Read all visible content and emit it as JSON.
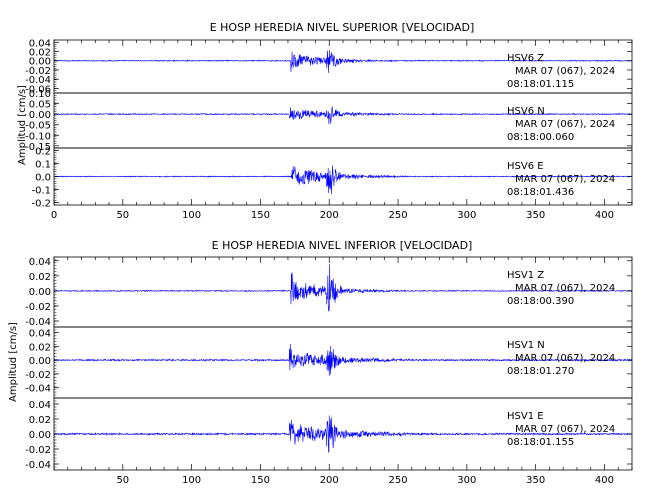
{
  "chart_data": [
    {
      "type": "line",
      "title": "E HOSP HEREDIA NIVEL SUPERIOR [VELOCIDAD]",
      "ylabel": "Amplitud [cm/s]",
      "xlim": [
        0,
        420
      ],
      "xticks": [
        "0",
        "50",
        "100",
        "150",
        "200",
        "250",
        "300",
        "350",
        "400"
      ],
      "series_color": "#0000ff",
      "traces": [
        {
          "station": "HSV6",
          "component": "Z",
          "date": "MAR 07 (067), 2024",
          "time": "08:18:01.115",
          "ylim": [
            -0.07,
            0.045
          ],
          "yticks": [
            "0.04",
            "0.02",
            "0.00",
            "-0.02",
            "-0.04",
            "-0.06"
          ],
          "onset": 172,
          "peak": 0.042,
          "burst": 200,
          "decay": 28,
          "noise": 0.0012
        },
        {
          "station": "HSV6",
          "component": "N",
          "date": "MAR 07 (067), 2024",
          "time": "08:18:00.060",
          "ylim": [
            -0.16,
            0.1
          ],
          "yticks": [
            "0.10",
            "0.05",
            "0.00",
            "-0.05",
            "-0.10",
            "-0.15"
          ],
          "onset": 171,
          "peak": 0.07,
          "burst": 200,
          "decay": 35,
          "noise": 0.003
        },
        {
          "station": "HSV6",
          "component": "E",
          "date": "MAR 07 (067), 2024",
          "time": "08:18:01.436",
          "ylim": [
            -0.22,
            0.22
          ],
          "yticks": [
            "0.2",
            "0.1",
            "0.0",
            "-0.1",
            "-0.2"
          ],
          "onset": 172,
          "peak": 0.2,
          "burst": 200,
          "decay": 30,
          "noise": 0.004
        }
      ]
    },
    {
      "type": "line",
      "title": "E HOSP HEREDIA NIVEL INFERIOR [VELOCIDAD]",
      "ylabel": "Amplitud [cm/s]",
      "xlim": [
        0,
        420
      ],
      "xticks": [
        "50",
        "100",
        "150",
        "200",
        "250",
        "300",
        "350",
        "400"
      ],
      "series_color": "#0000ff",
      "traces": [
        {
          "station": "HSV1",
          "component": "Z",
          "date": "MAR 07 (067), 2024",
          "time": "08:18:00.390",
          "ylim": [
            -0.048,
            0.045
          ],
          "yticks": [
            "0.04",
            "0.02",
            "0.00",
            "-0.02",
            "-0.04"
          ],
          "onset": 172,
          "peak": 0.04,
          "burst": 200,
          "decay": 28,
          "noise": 0.0008
        },
        {
          "station": "HSV1",
          "component": "N",
          "date": "MAR 07 (067), 2024",
          "time": "08:18:01.270",
          "ylim": [
            -0.055,
            0.048
          ],
          "yticks": [
            "0.04",
            "0.02",
            "0.00",
            "-0.02",
            "-0.04"
          ],
          "onset": 171,
          "peak": 0.033,
          "burst": 200,
          "decay": 40,
          "noise": 0.0012
        },
        {
          "station": "HSV1",
          "component": "E",
          "date": "MAR 07 (067), 2024",
          "time": "08:18:01.155",
          "ylim": [
            -0.048,
            0.048
          ],
          "yticks": [
            "0.04",
            "0.02",
            "0.00",
            "-0.02",
            "-0.04"
          ],
          "onset": 171,
          "peak": 0.036,
          "burst": 200,
          "decay": 42,
          "noise": 0.0012
        }
      ]
    }
  ]
}
